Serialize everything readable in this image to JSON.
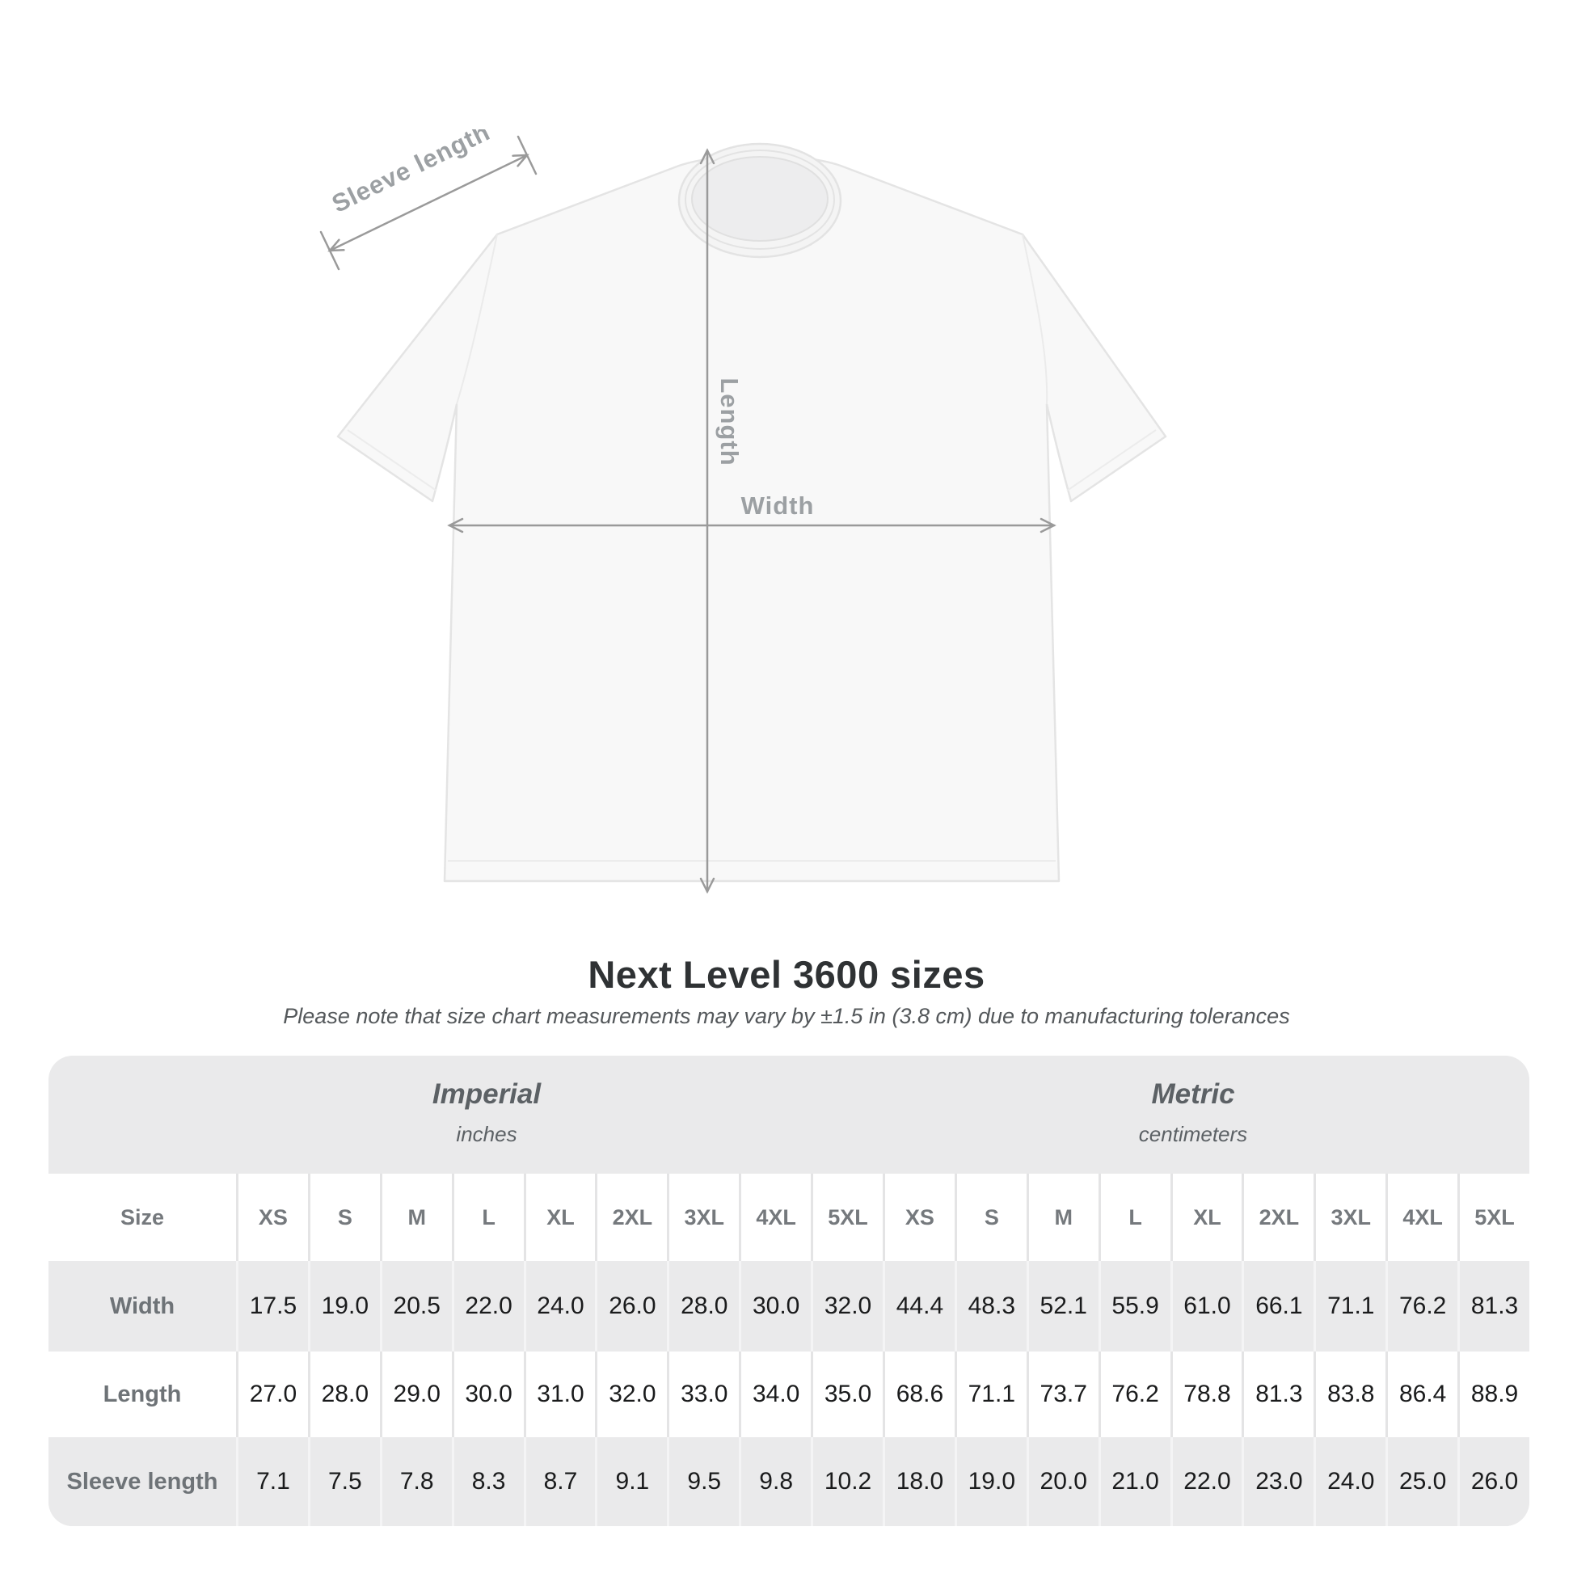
{
  "title": "Next Level 3600 sizes",
  "subtitle": "Please note that size chart measurements may vary by ±1.5 in (3.8 cm) due to manufacturing tolerances",
  "diagram": {
    "labels": {
      "sleeve_length": "Sleeve length",
      "length": "Length",
      "width": "Width"
    },
    "line_color": "#9a9a9a"
  },
  "table": {
    "size_col_header": "Size",
    "sizes": [
      "XS",
      "S",
      "M",
      "L",
      "XL",
      "2XL",
      "3XL",
      "4XL",
      "5XL"
    ],
    "unit_groups": [
      {
        "name": "Imperial",
        "unit": "inches"
      },
      {
        "name": "Metric",
        "unit": "centimeters"
      }
    ],
    "rows": [
      {
        "label": "Width",
        "imperial": [
          "17.5",
          "19.0",
          "20.5",
          "22.0",
          "24.0",
          "26.0",
          "28.0",
          "30.0",
          "32.0"
        ],
        "metric": [
          "44.4",
          "48.3",
          "52.1",
          "55.9",
          "61.0",
          "66.1",
          "71.1",
          "76.2",
          "81.3"
        ]
      },
      {
        "label": "Length",
        "imperial": [
          "27.0",
          "28.0",
          "29.0",
          "30.0",
          "31.0",
          "32.0",
          "33.0",
          "34.0",
          "35.0"
        ],
        "metric": [
          "68.6",
          "71.1",
          "73.7",
          "76.2",
          "78.8",
          "81.3",
          "83.8",
          "86.4",
          "88.9"
        ]
      },
      {
        "label": "Sleeve length",
        "imperial": [
          "7.1",
          "7.5",
          "7.8",
          "8.3",
          "8.7",
          "9.1",
          "9.5",
          "9.8",
          "10.2"
        ],
        "metric": [
          "18.0",
          "19.0",
          "20.0",
          "21.0",
          "22.0",
          "23.0",
          "24.0",
          "25.0",
          "26.0"
        ]
      }
    ]
  },
  "chart_data": {
    "type": "table",
    "title": "Next Level 3600 sizes",
    "note": "Measurements may vary by ±1.5 in (3.8 cm) due to manufacturing tolerances",
    "columns": [
      "XS",
      "S",
      "M",
      "L",
      "XL",
      "2XL",
      "3XL",
      "4XL",
      "5XL"
    ],
    "unit_groups": [
      "Imperial (inches)",
      "Metric (centimeters)"
    ],
    "measurements": [
      {
        "name": "Width",
        "imperial_in": [
          17.5,
          19.0,
          20.5,
          22.0,
          24.0,
          26.0,
          28.0,
          30.0,
          32.0
        ],
        "metric_cm": [
          44.4,
          48.3,
          52.1,
          55.9,
          61.0,
          66.1,
          71.1,
          76.2,
          81.3
        ]
      },
      {
        "name": "Length",
        "imperial_in": [
          27.0,
          28.0,
          29.0,
          30.0,
          31.0,
          32.0,
          33.0,
          34.0,
          35.0
        ],
        "metric_cm": [
          68.6,
          71.1,
          73.7,
          76.2,
          78.8,
          81.3,
          83.8,
          86.4,
          88.9
        ]
      },
      {
        "name": "Sleeve length",
        "imperial_in": [
          7.1,
          7.5,
          7.8,
          8.3,
          8.7,
          9.1,
          9.5,
          9.8,
          10.2
        ],
        "metric_cm": [
          18.0,
          19.0,
          20.0,
          21.0,
          22.0,
          23.0,
          24.0,
          25.0,
          26.0
        ]
      }
    ]
  }
}
